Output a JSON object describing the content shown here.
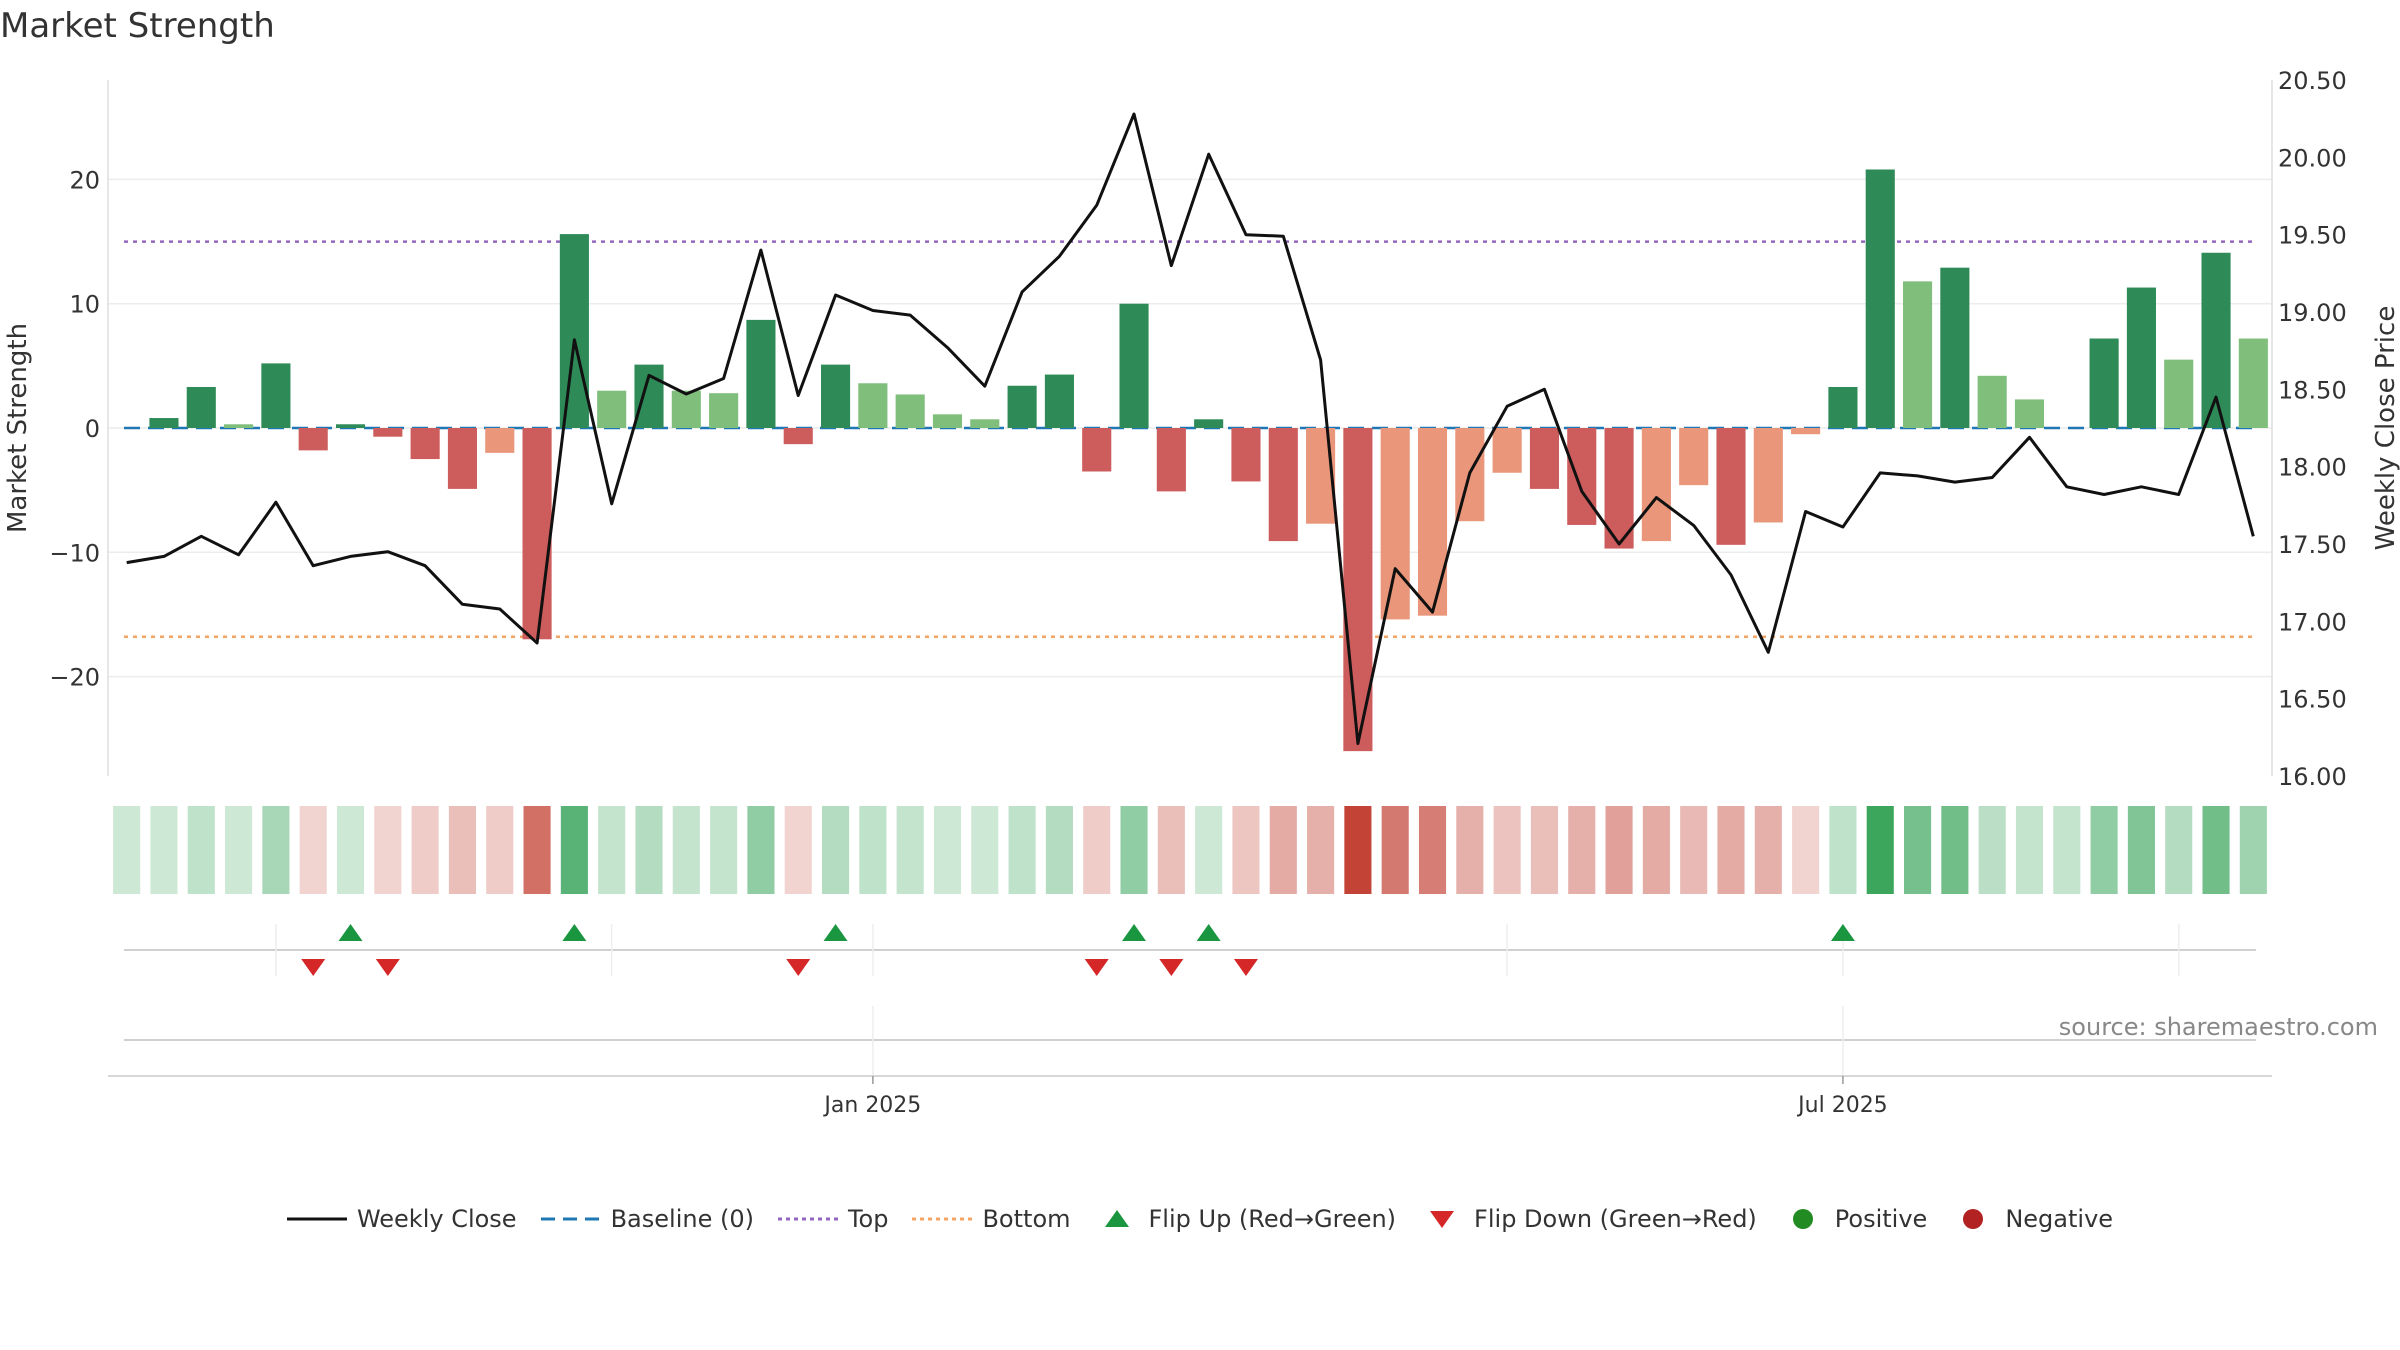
{
  "title": "Market Strength",
  "source": "source: sharemaestro.com",
  "legend": {
    "weekly_close": "Weekly Close",
    "baseline": "Baseline (0)",
    "top": "Top",
    "bottom": "Bottom",
    "flip_up": "Flip Up (Red→Green)",
    "flip_down": "Flip Down (Green→Red)",
    "positive": "Positive",
    "negative": "Negative"
  },
  "colors": {
    "pos_dark": "#2e8b57",
    "pos_light": "#7fbf7b",
    "neg_dark": "#cd5c5c",
    "neg_light": "#e9967a",
    "close_line": "#111111",
    "baseline": "#1f77b4",
    "top": "#9467bd",
    "bottom": "#f4a460",
    "flip_up": "#1a9641",
    "flip_down": "#d62728",
    "positive": "#228b22",
    "negative": "#b22222"
  },
  "chart_data": {
    "type": "bar",
    "ylabel_left": "Market Strength",
    "ylabel_right": "Weekly Close Price",
    "ylim_left": [
      -28,
      28
    ],
    "yticks_left": [
      -20,
      -10,
      0,
      10,
      20
    ],
    "ylim_right": [
      16.0,
      20.5
    ],
    "yticks_right": [
      "16.00",
      "16.50",
      "17.00",
      "17.50",
      "18.00",
      "18.50",
      "19.00",
      "19.50",
      "20.00",
      "20.50"
    ],
    "x_ticks": [
      "Jan 2025",
      "Jul 2025"
    ],
    "x_tick_index": [
      20.5,
      46.5
    ],
    "top_line": 15,
    "bottom_line": -16.8,
    "strength": [
      0.0,
      0.8,
      3.3,
      0.3,
      5.2,
      -1.8,
      0.3,
      -0.7,
      -2.5,
      -4.9,
      -2.0,
      -17.0,
      15.6,
      3.0,
      5.1,
      3.0,
      2.8,
      8.7,
      -1.3,
      5.1,
      3.6,
      2.7,
      1.1,
      0.7,
      3.4,
      4.3,
      -3.5,
      10.0,
      -5.1,
      0.7,
      -4.3,
      -9.1,
      -7.7,
      -26.0,
      -15.4,
      -15.1,
      -7.5,
      -3.6,
      -4.9,
      -7.8,
      -9.7,
      -9.1,
      -4.6,
      -9.4,
      -7.6,
      -0.5,
      3.3,
      20.8,
      11.8,
      12.9,
      4.2,
      2.3,
      0.0,
      7.2,
      11.3,
      5.5,
      14.1,
      7.2
    ],
    "bar_shade": [
      "d",
      "d",
      "d",
      "l",
      "d",
      "d",
      "d",
      "d",
      "d",
      "d",
      "l",
      "d",
      "d",
      "l",
      "d",
      "l",
      "l",
      "d",
      "d",
      "d",
      "l",
      "l",
      "l",
      "l",
      "d",
      "d",
      "d",
      "d",
      "d",
      "d",
      "d",
      "d",
      "l",
      "d",
      "l",
      "l",
      "l",
      "l",
      "d",
      "d",
      "d",
      "l",
      "l",
      "d",
      "l",
      "l",
      "d",
      "d",
      "l",
      "d",
      "l",
      "l",
      "d",
      "d",
      "d",
      "l",
      "d",
      "l"
    ],
    "weekly_close": [
      17.38,
      17.42,
      17.55,
      17.43,
      17.77,
      17.36,
      17.42,
      17.45,
      17.36,
      17.11,
      17.08,
      16.86,
      18.82,
      17.76,
      18.59,
      18.47,
      18.57,
      19.4,
      18.46,
      19.11,
      19.01,
      18.98,
      18.77,
      18.52,
      19.13,
      19.36,
      19.69,
      20.28,
      19.3,
      20.02,
      19.5,
      19.49,
      18.69,
      16.21,
      17.34,
      17.06,
      17.96,
      18.39,
      18.5,
      17.84,
      17.5,
      17.8,
      17.62,
      17.3,
      16.8,
      17.71,
      17.61,
      17.96,
      17.94,
      17.9,
      17.93,
      18.19,
      17.87,
      17.82,
      17.87,
      17.82,
      18.45,
      17.55
    ],
    "heat_alpha": [
      0.22,
      0.22,
      0.28,
      0.22,
      0.38,
      0.22,
      0.22,
      0.22,
      0.26,
      0.33,
      0.26,
      0.72,
      0.72,
      0.26,
      0.33,
      0.26,
      0.26,
      0.48,
      0.22,
      0.33,
      0.28,
      0.26,
      0.22,
      0.22,
      0.28,
      0.33,
      0.26,
      0.48,
      0.33,
      0.22,
      0.29,
      0.43,
      0.4,
      0.95,
      0.68,
      0.65,
      0.4,
      0.3,
      0.33,
      0.4,
      0.48,
      0.43,
      0.35,
      0.43,
      0.4,
      0.22,
      0.28,
      0.85,
      0.6,
      0.62,
      0.3,
      0.26,
      0.26,
      0.48,
      0.55,
      0.33,
      0.62,
      0.42
    ],
    "flip_up_index": [
      6,
      12,
      19,
      27,
      29,
      46
    ],
    "flip_down_index": [
      5,
      7,
      18,
      26,
      28,
      30
    ]
  }
}
